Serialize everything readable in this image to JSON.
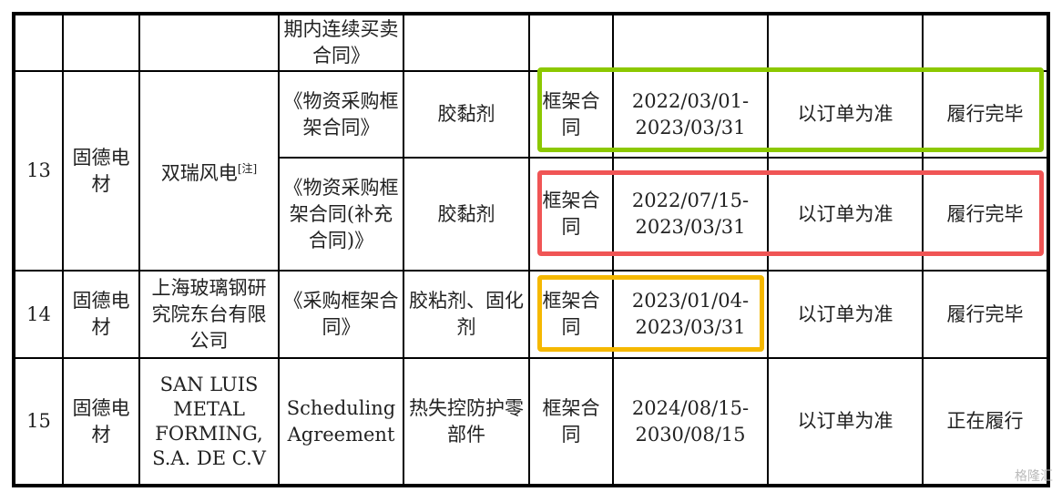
{
  "rows": [
    {
      "contract": "期内连续买卖合同》"
    },
    {
      "no": "13",
      "party": "固德电材",
      "counterparty": "双瑞风电",
      "note": "[注]",
      "sub": [
        {
          "contract": "《物资采购框架合同》",
          "product": "胶黏剂",
          "type": "框架合同",
          "period": "2022/03/01-2023/03/31",
          "amount": "以订单为准",
          "status": "履行完毕"
        },
        {
          "contract": "《物资采购框架合同(补充合同)》",
          "product": "胶黏剂",
          "type": "框架合同",
          "period": "2022/07/15-2023/03/31",
          "amount": "以订单为准",
          "status": "履行完毕"
        }
      ]
    },
    {
      "no": "14",
      "party": "固德电材",
      "counterparty": "上海玻璃钢研究院东台有限公司",
      "contract": "《采购框架合同》",
      "product": "胶粘剂、固化剂",
      "type": "框架合同",
      "period": "2023/01/04-2023/03/31",
      "amount": "以订单为准",
      "status": "履行完毕"
    },
    {
      "no": "15",
      "party": "固德电材",
      "counterparty": "SAN LUIS METAL FORMING, S.A. DE C.V",
      "contract": "Scheduling Agreement",
      "product": "热失控防护零部件",
      "type": "框架合同",
      "period": "2024/08/15-2030/08/15",
      "amount": "以订单为准",
      "status": "正在履行"
    }
  ],
  "highlights": {
    "green": "#8cc800",
    "red": "#f05555",
    "orange": "#f5b800"
  },
  "watermark": "格隆汇"
}
